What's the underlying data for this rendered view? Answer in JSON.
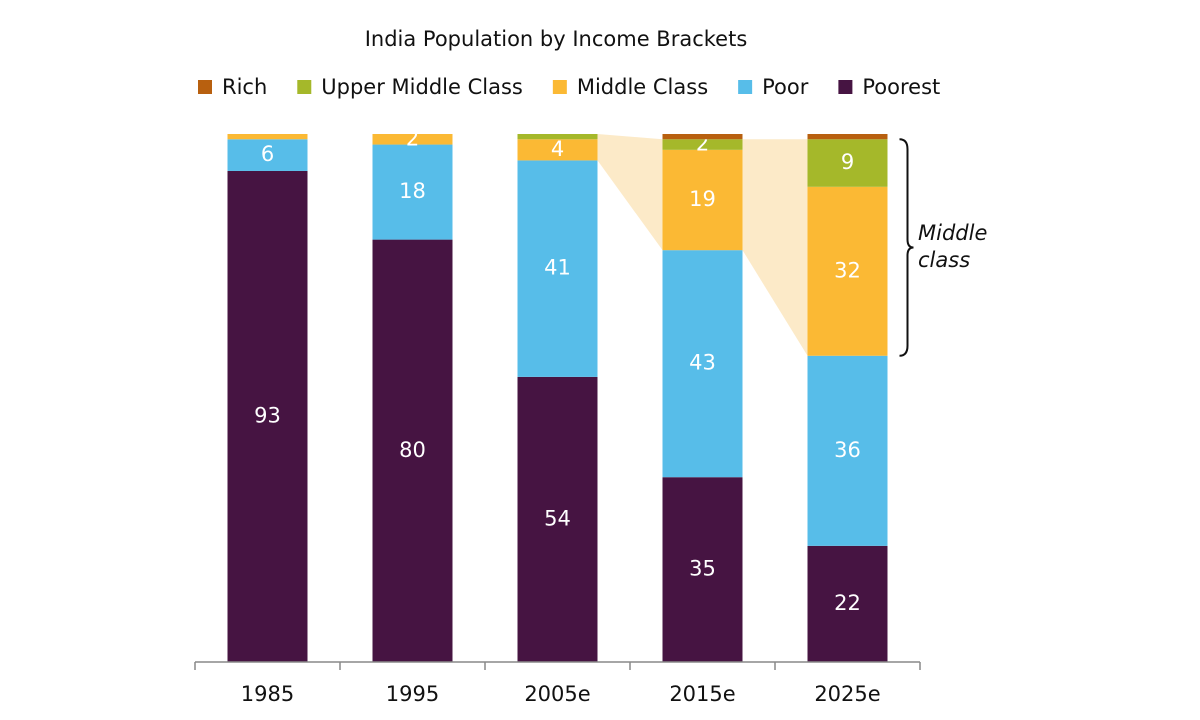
{
  "chart_data": {
    "type": "stacked_bar",
    "title": "India Population by Income Brackets",
    "categories": [
      "1985",
      "1995",
      "2005e",
      "2015e",
      "2025e"
    ],
    "series": [
      {
        "name": "Poorest",
        "color": "#461442",
        "values": [
          93,
          80,
          54,
          35,
          22
        ],
        "show_labels": true
      },
      {
        "name": "Poor",
        "color": "#57bde9",
        "values": [
          6,
          18,
          41,
          43,
          36
        ],
        "show_labels": true
      },
      {
        "name": "Middle Class",
        "color": "#fbb934",
        "values": [
          1,
          2,
          4,
          19,
          32
        ],
        "show_labels": true
      },
      {
        "name": "Upper Middle Class",
        "color": "#a5b82a",
        "values": [
          0,
          0,
          1,
          2,
          9
        ],
        "show_labels": true
      },
      {
        "name": "Rich",
        "color": "#b8600f",
        "values": [
          0,
          0,
          0,
          1,
          1
        ],
        "show_labels": false
      }
    ],
    "legend_order": [
      4,
      3,
      2,
      1,
      0
    ],
    "ylim": [
      0,
      100
    ],
    "annotation": "Middle class"
  }
}
